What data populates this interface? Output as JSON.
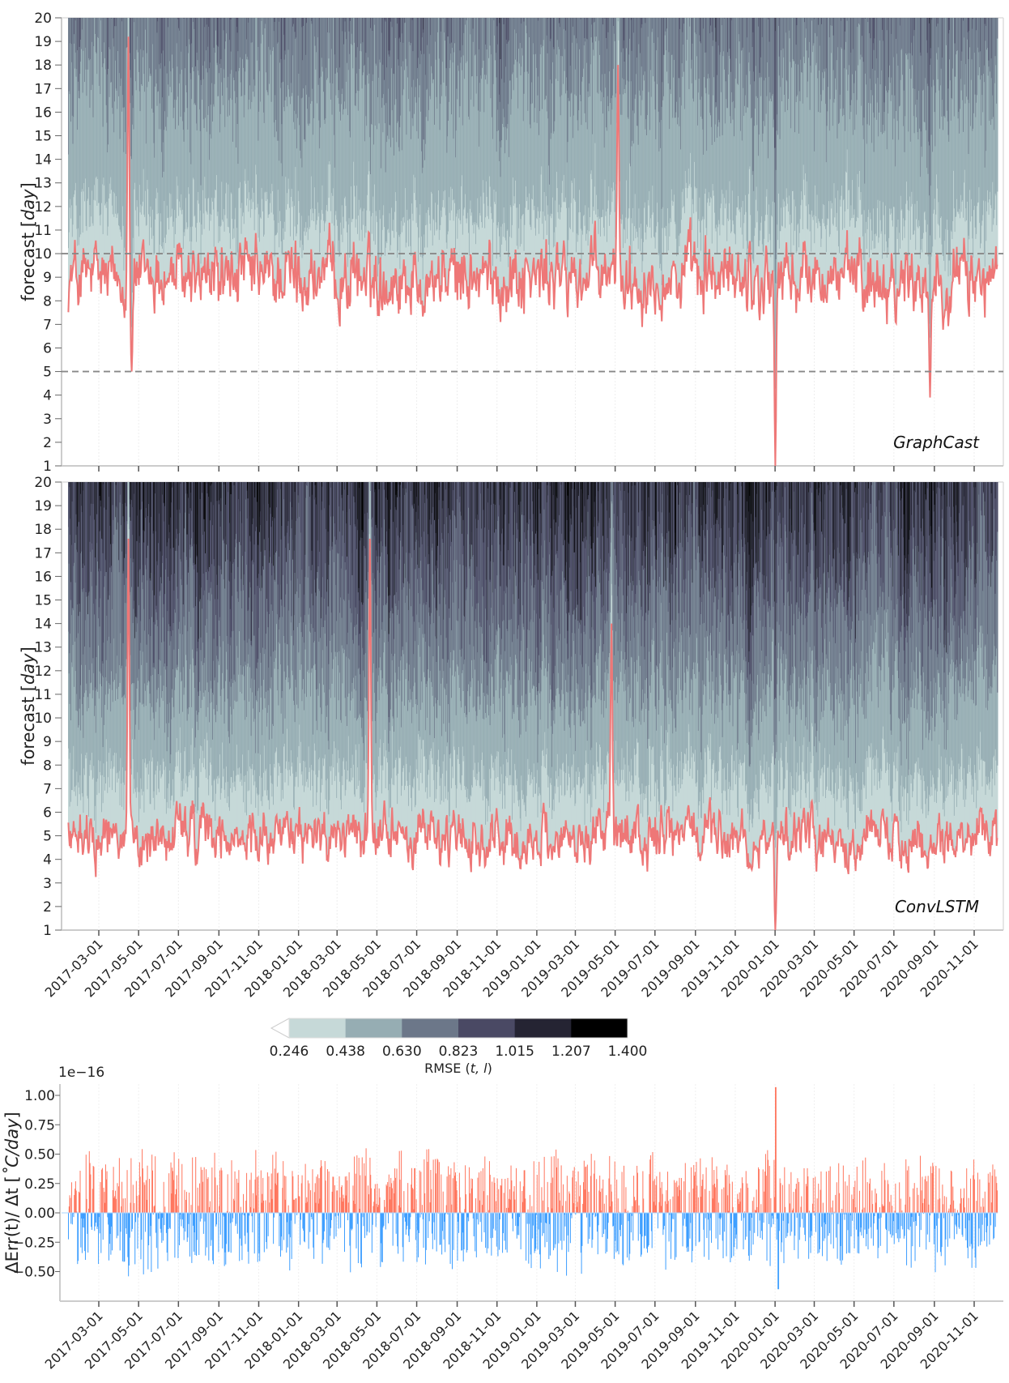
{
  "chart_data": [
    {
      "type": "heatmap",
      "panel": "top",
      "model_label": "GraphCast",
      "ylabel_prefix": "forecast [",
      "ylabel_unit": "day",
      "ylabel_suffix": "]",
      "ylim": [
        1,
        20
      ],
      "yticks": [
        1,
        2,
        3,
        4,
        5,
        6,
        7,
        8,
        9,
        10,
        11,
        12,
        13,
        14,
        15,
        16,
        17,
        18,
        19,
        20
      ],
      "xlim": [
        "2017-01-01",
        "2020-12-31"
      ],
      "reference_lines": [
        5,
        10
      ],
      "threshold_line_color": "#ee7777",
      "description": "Filled contour of RMSE(t, l) over initialization date and lead time; red line marks lead time where RMSE first exceeds threshold 0.246",
      "threshold_series_summary": {
        "typical_range": [
          6,
          12
        ],
        "min": 1,
        "max": 19.2,
        "notable": [
          {
            "date": "2017-04-15",
            "value": 19.2
          },
          {
            "date": "2017-04-20",
            "value": 5
          },
          {
            "date": "2019-05-05",
            "value": 18
          },
          {
            "date": "2020-01-01",
            "value": 1
          },
          {
            "date": "2020-08-25",
            "value": 3.9
          }
        ]
      }
    },
    {
      "type": "heatmap",
      "panel": "middle",
      "model_label": "ConvLSTM",
      "ylabel_prefix": "forecast [",
      "ylabel_unit": "day",
      "ylabel_suffix": "]",
      "ylim": [
        1,
        20
      ],
      "yticks": [
        1,
        2,
        3,
        4,
        5,
        6,
        7,
        8,
        9,
        10,
        11,
        12,
        13,
        14,
        15,
        16,
        17,
        18,
        19,
        20
      ],
      "xlim": [
        "2017-01-01",
        "2020-12-31"
      ],
      "xtick_labels": [
        "2017-03-01",
        "2017-05-01",
        "2017-07-01",
        "2017-09-01",
        "2017-11-01",
        "2018-01-01",
        "2018-03-01",
        "2018-05-01",
        "2018-07-01",
        "2018-09-01",
        "2018-11-01",
        "2019-01-01",
        "2019-03-01",
        "2019-05-01",
        "2019-07-01",
        "2019-09-01",
        "2019-11-01",
        "2020-01-01",
        "2020-03-01",
        "2020-05-01",
        "2020-07-01",
        "2020-09-01",
        "2020-11-01"
      ],
      "threshold_series_summary": {
        "typical_range": [
          3,
          8
        ],
        "min": 1,
        "max": 17.6,
        "notable": [
          {
            "date": "2017-04-15",
            "value": 17.6
          },
          {
            "date": "2018-04-20",
            "value": 17.6
          },
          {
            "date": "2019-04-25",
            "value": 14
          },
          {
            "date": "2020-01-01",
            "value": 1
          }
        ]
      }
    },
    {
      "type": "colorbar",
      "label_prefix": "RMSE (",
      "label_vars": "t, l",
      "label_suffix": ")",
      "levels": [
        "0.246",
        "0.438",
        "0.630",
        "0.823",
        "1.015",
        "1.207",
        "1.400"
      ],
      "colors": [
        "#c6d9d8",
        "#96adb3",
        "#6c7789",
        "#4a4964",
        "#252433",
        "#000000"
      ],
      "extend": "min"
    },
    {
      "type": "bar",
      "panel": "bottom",
      "ylabel": "ΔErr(t)/ Δt [˚C/day]",
      "ylabel_plain": "ΔErr(t)/ Δt [",
      "ylabel_unit": "˚C/day",
      "ylabel_close": "]",
      "offset_label": "1e−16",
      "ylim": [
        -0.68,
        1.1
      ],
      "yticks": [
        "−0.50",
        "−0.25",
        "0.00",
        "0.25",
        "0.50",
        "0.75",
        "1.00"
      ],
      "ytick_values": [
        -0.5,
        -0.25,
        0,
        0.25,
        0.5,
        0.75,
        1.0
      ],
      "positive_color": "#ff6f55",
      "negative_color": "#3399ff",
      "xtick_labels": [
        "2017-03-01",
        "2017-05-01",
        "2017-07-01",
        "2017-09-01",
        "2017-11-01",
        "2018-01-01",
        "2018-03-01",
        "2018-05-01",
        "2018-07-01",
        "2018-09-01",
        "2018-11-01",
        "2019-01-01",
        "2019-03-01",
        "2019-05-01",
        "2019-07-01",
        "2019-09-01",
        "2019-11-01",
        "2020-01-01",
        "2020-03-01",
        "2020-05-01",
        "2020-07-01",
        "2020-09-01",
        "2020-11-01"
      ],
      "summary": {
        "max": 1.07,
        "max_date": "2020-01-01",
        "min": -0.65,
        "min_date": "2020-01-05",
        "typical_positive": [
          0.1,
          0.45
        ],
        "typical_negative": [
          -0.1,
          -0.45
        ]
      }
    }
  ]
}
